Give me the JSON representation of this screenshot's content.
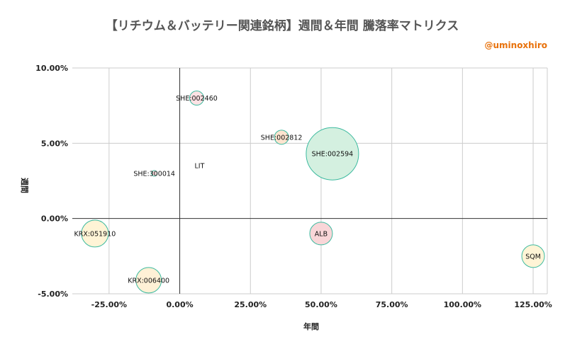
{
  "chart_data": {
    "type": "bubble",
    "title": "【リチウム＆バッテリー関連銘柄】週間＆年間 騰落率マトリクス",
    "credit": "@uminoxhiro",
    "xlabel": "年間",
    "ylabel": "週間",
    "xlim": [
      -0.38,
      1.3
    ],
    "ylim": [
      -0.05,
      0.1
    ],
    "x_ticks": [
      {
        "value": -0.25,
        "label": "-25.00%"
      },
      {
        "value": 0.0,
        "label": "0.00%"
      },
      {
        "value": 0.25,
        "label": "25.00%"
      },
      {
        "value": 0.5,
        "label": "50.00%"
      },
      {
        "value": 0.75,
        "label": "75.00%"
      },
      {
        "value": 1.0,
        "label": "100.00%"
      },
      {
        "value": 1.25,
        "label": "125.00%"
      }
    ],
    "y_ticks": [
      {
        "value": 0.1,
        "label": "10.00%"
      },
      {
        "value": 0.05,
        "label": "5.00%"
      },
      {
        "value": 0.0,
        "label": "0.00%"
      },
      {
        "value": -0.05,
        "label": "-5.00%"
      }
    ],
    "grid": true,
    "points": [
      {
        "label": "SHE:002460",
        "x": 0.06,
        "y": 0.08,
        "size": 10,
        "fill": "#fde2e4",
        "stroke": "#3cba9f"
      },
      {
        "label": "SHE:002812",
        "x": 0.36,
        "y": 0.054,
        "size": 10,
        "fill": "#fde4cf",
        "stroke": "#3cba9f"
      },
      {
        "label": "SHE:002594",
        "x": 0.54,
        "y": 0.043,
        "size": 37,
        "fill": "#d4f0e0",
        "stroke": "#3cba9f"
      },
      {
        "label": "SHE:300014",
        "x": -0.09,
        "y": 0.03,
        "size": 4,
        "fill": "#fde2e4",
        "stroke": "#3cba9f"
      },
      {
        "label": "LIT",
        "x": 0.07,
        "y": 0.035,
        "size": 0,
        "fill": "#ffffff",
        "stroke": "#3cba9f"
      },
      {
        "label": "KRX:051910",
        "x": -0.3,
        "y": -0.01,
        "size": 19,
        "fill": "#fff4d6",
        "stroke": "#3cba9f"
      },
      {
        "label": "ALB",
        "x": 0.5,
        "y": -0.01,
        "size": 16,
        "fill": "#f9d6d8",
        "stroke": "#3cba9f"
      },
      {
        "label": "KRX:006400",
        "x": -0.11,
        "y": -0.041,
        "size": 18,
        "fill": "#fff1d6",
        "stroke": "#3cba9f"
      },
      {
        "label": "SQM",
        "x": 1.25,
        "y": -0.025,
        "size": 16,
        "fill": "#fff4d6",
        "stroke": "#3cba9f"
      }
    ]
  }
}
